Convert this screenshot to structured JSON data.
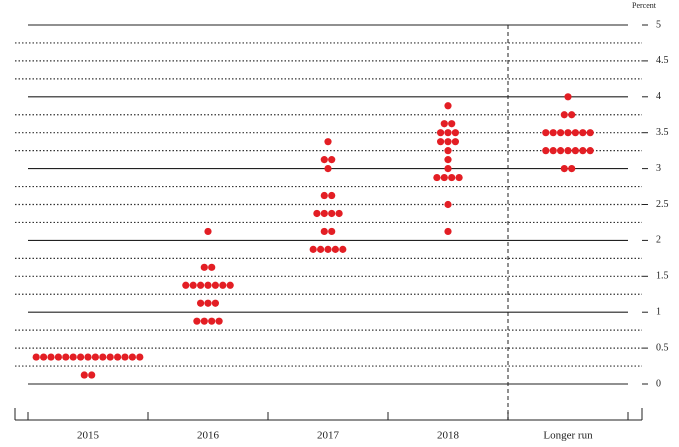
{
  "chart_data": {
    "type": "dot",
    "y_label": "Percent",
    "categories": [
      "2015",
      "2016",
      "2017",
      "2018",
      "Longer run"
    ],
    "values": [
      [
        0.375,
        0.375,
        0.375,
        0.375,
        0.375,
        0.375,
        0.375,
        0.375,
        0.375,
        0.375,
        0.375,
        0.375,
        0.375,
        0.375,
        0.375,
        0.125,
        0.125
      ],
      [
        0.875,
        0.875,
        0.875,
        0.875,
        1.125,
        1.125,
        1.125,
        1.375,
        1.375,
        1.375,
        1.375,
        1.375,
        1.375,
        1.375,
        1.625,
        1.625,
        2.125
      ],
      [
        1.875,
        1.875,
        1.875,
        1.875,
        1.875,
        2.125,
        2.125,
        2.375,
        2.375,
        2.375,
        2.375,
        2.625,
        2.625,
        3.0,
        3.125,
        3.125,
        3.375
      ],
      [
        2.125,
        2.5,
        2.875,
        2.875,
        2.875,
        2.875,
        3.0,
        3.125,
        3.25,
        3.375,
        3.375,
        3.375,
        3.5,
        3.5,
        3.5,
        3.625,
        3.625,
        3.875
      ],
      [
        3.0,
        3.0,
        3.25,
        3.25,
        3.25,
        3.25,
        3.25,
        3.25,
        3.25,
        3.5,
        3.5,
        3.5,
        3.5,
        3.5,
        3.5,
        3.5,
        3.75,
        3.75,
        4.0
      ]
    ],
    "color": "#e31e24",
    "ylim": [
      0,
      5
    ],
    "yticks": [
      0,
      0.5,
      1,
      1.5,
      2,
      2.5,
      3,
      3.5,
      4,
      4.5,
      5
    ],
    "grid": true
  }
}
